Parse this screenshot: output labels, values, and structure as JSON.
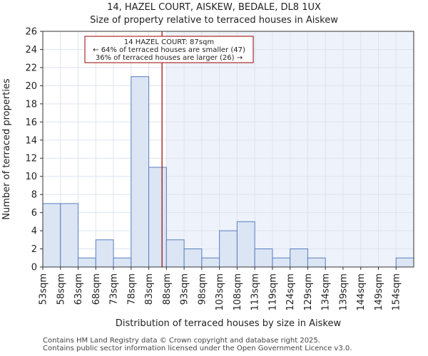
{
  "chart_data": {
    "type": "bar",
    "title": "14, HAZEL COURT, AISKEW, BEDALE, DL8 1UX",
    "subtitle": "Size of property relative to terraced houses in Aiskew",
    "xlabel": "Distribution of terraced houses by size in Aiskew",
    "ylabel": "Number of terraced properties",
    "categories": [
      "53sqm",
      "58sqm",
      "63sqm",
      "68sqm",
      "73sqm",
      "78sqm",
      "83sqm",
      "88sqm",
      "93sqm",
      "98sqm",
      "103sqm",
      "108sqm",
      "113sqm",
      "119sqm",
      "124sqm",
      "129sqm",
      "134sqm",
      "139sqm",
      "144sqm",
      "149sqm",
      "154sqm"
    ],
    "values": [
      7,
      7,
      1,
      3,
      1,
      21,
      11,
      3,
      2,
      1,
      4,
      5,
      2,
      1,
      2,
      1,
      0,
      0,
      0,
      0,
      1
    ],
    "ylim": [
      0,
      26
    ],
    "yticks": [
      0,
      2,
      4,
      6,
      8,
      10,
      12,
      14,
      16,
      18,
      20,
      22,
      24,
      26
    ],
    "property_marker_bin": 6.75,
    "highlight_from_bin": 7,
    "colors": {
      "bar_fill": "#dbe5f4",
      "bar_stroke": "#5a7fbf",
      "marker": "#990000",
      "highlight_bg": "#eef2fb"
    },
    "annotation": {
      "line1": "14 HAZEL COURT: 87sqm",
      "line2": "← 64% of terraced houses are smaller (47)",
      "line3": "36% of terraced houses are larger (26) →"
    }
  },
  "footer": {
    "line1": "Contains HM Land Registry data © Crown copyright and database right 2025.",
    "line2": "Contains public sector information licensed under the Open Government Licence v3.0."
  }
}
